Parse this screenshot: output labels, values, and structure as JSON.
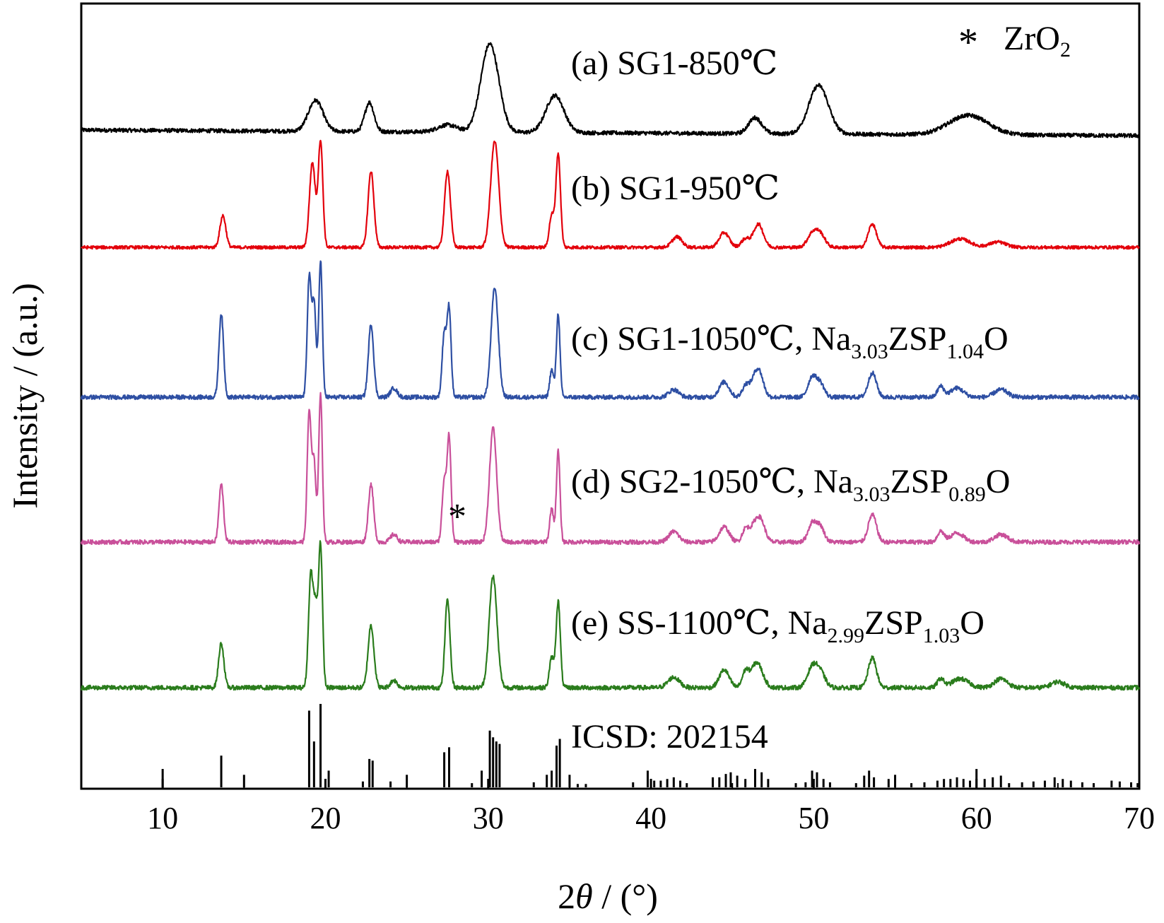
{
  "chart_data": {
    "type": "line",
    "xlabel_prefix": "2",
    "xlabel_symbol": "θ",
    "xlabel_suffix": " / (°)",
    "ylabel": "Intensity / (a.u.)",
    "xlim": [
      5,
      70
    ],
    "x_ticks": [
      10,
      20,
      30,
      40,
      50,
      60,
      70
    ],
    "y_tick_labels_shown": false,
    "grid": false,
    "legend_note": {
      "marker": "*",
      "text": "ZrO",
      "sub": "2"
    },
    "series": [
      {
        "id": "a",
        "label_main": "(a) SG1-850℃",
        "label_rest": [],
        "color": "#000000",
        "noise": 0.045,
        "peaks": [
          [
            19.4,
            0.35,
            0.45
          ],
          [
            22.7,
            0.33,
            0.28
          ],
          [
            27.5,
            0.08,
            0.6
          ],
          [
            30.1,
            1.0,
            0.55
          ],
          [
            34.1,
            0.42,
            0.55
          ],
          [
            46.4,
            0.18,
            0.4
          ],
          [
            50.3,
            0.55,
            0.6
          ],
          [
            59.5,
            0.22,
            1.2
          ]
        ]
      },
      {
        "id": "b",
        "label_main": "(b) SG1-950℃",
        "label_rest": [],
        "color": "#e3000b",
        "noise": 0.03,
        "peaks": [
          [
            13.7,
            0.3,
            0.18
          ],
          [
            19.2,
            0.8,
            0.18
          ],
          [
            19.7,
            1.0,
            0.14
          ],
          [
            22.8,
            0.72,
            0.18
          ],
          [
            27.5,
            0.72,
            0.18
          ],
          [
            30.4,
            1.0,
            0.25
          ],
          [
            33.9,
            0.3,
            0.15
          ],
          [
            34.3,
            0.88,
            0.14
          ],
          [
            41.6,
            0.1,
            0.3
          ],
          [
            44.5,
            0.14,
            0.3
          ],
          [
            45.8,
            0.08,
            0.25
          ],
          [
            46.6,
            0.22,
            0.3
          ],
          [
            49.9,
            0.12,
            0.3
          ],
          [
            50.4,
            0.12,
            0.3
          ],
          [
            53.6,
            0.22,
            0.25
          ],
          [
            59.0,
            0.08,
            0.6
          ],
          [
            61.3,
            0.05,
            0.5
          ]
        ]
      },
      {
        "id": "c",
        "label_main": "(c) SG1-1050℃, Na",
        "label_rest": [
          [
            "3.03",
            "sub"
          ],
          [
            "ZSP",
            "main"
          ],
          [
            "1.04",
            "sub"
          ],
          [
            "O",
            "main"
          ]
        ],
        "color": "#2e4fa3",
        "noise": 0.028,
        "peaks": [
          [
            13.6,
            0.55,
            0.14
          ],
          [
            19.0,
            0.78,
            0.12
          ],
          [
            19.3,
            0.62,
            0.12
          ],
          [
            19.7,
            0.9,
            0.11
          ],
          [
            22.8,
            0.48,
            0.16
          ],
          [
            24.2,
            0.06,
            0.2
          ],
          [
            27.3,
            0.42,
            0.13
          ],
          [
            27.6,
            0.58,
            0.12
          ],
          [
            30.4,
            0.72,
            0.22
          ],
          [
            33.9,
            0.18,
            0.12
          ],
          [
            34.3,
            0.55,
            0.11
          ],
          [
            41.4,
            0.05,
            0.3
          ],
          [
            44.5,
            0.1,
            0.3
          ],
          [
            45.8,
            0.07,
            0.2
          ],
          [
            46.4,
            0.12,
            0.3
          ],
          [
            46.7,
            0.1,
            0.25
          ],
          [
            49.9,
            0.13,
            0.25
          ],
          [
            50.4,
            0.09,
            0.25
          ],
          [
            53.6,
            0.16,
            0.25
          ],
          [
            57.8,
            0.07,
            0.2
          ],
          [
            58.8,
            0.06,
            0.4
          ],
          [
            61.5,
            0.05,
            0.4
          ]
        ]
      },
      {
        "id": "d",
        "label_main": "(d) SG2-1050℃, Na",
        "label_rest": [
          [
            "3.03",
            "sub"
          ],
          [
            "ZSP",
            "main"
          ],
          [
            "0.89",
            "sub"
          ],
          [
            "O",
            "main"
          ]
        ],
        "color": "#c9509a",
        "noise": 0.028,
        "peaks": [
          [
            13.6,
            0.38,
            0.14
          ],
          [
            19.0,
            0.85,
            0.12
          ],
          [
            19.3,
            0.52,
            0.12
          ],
          [
            19.7,
            0.98,
            0.11
          ],
          [
            22.8,
            0.38,
            0.16
          ],
          [
            24.2,
            0.05,
            0.2
          ],
          [
            27.3,
            0.4,
            0.13
          ],
          [
            27.6,
            0.68,
            0.12
          ],
          [
            30.3,
            0.75,
            0.22
          ],
          [
            33.9,
            0.22,
            0.12
          ],
          [
            34.3,
            0.6,
            0.11
          ],
          [
            41.4,
            0.07,
            0.3
          ],
          [
            44.5,
            0.1,
            0.3
          ],
          [
            45.8,
            0.08,
            0.2
          ],
          [
            46.4,
            0.12,
            0.3
          ],
          [
            46.8,
            0.1,
            0.25
          ],
          [
            49.9,
            0.12,
            0.25
          ],
          [
            50.4,
            0.1,
            0.25
          ],
          [
            53.6,
            0.18,
            0.25
          ],
          [
            57.8,
            0.07,
            0.2
          ],
          [
            58.8,
            0.06,
            0.4
          ],
          [
            61.5,
            0.05,
            0.4
          ]
        ]
      },
      {
        "id": "e",
        "label_main": "(e) SS-1100℃, Na",
        "label_rest": [
          [
            "2.99",
            "sub"
          ],
          [
            "ZSP",
            "main"
          ],
          [
            "1.03",
            "sub"
          ],
          [
            "O",
            "main"
          ]
        ],
        "color": "#2a7c1c",
        "noise": 0.03,
        "peaks": [
          [
            13.6,
            0.3,
            0.16
          ],
          [
            19.1,
            0.75,
            0.14
          ],
          [
            19.4,
            0.5,
            0.13
          ],
          [
            19.7,
            0.95,
            0.12
          ],
          [
            22.8,
            0.42,
            0.18
          ],
          [
            24.2,
            0.05,
            0.2
          ],
          [
            27.5,
            0.6,
            0.15
          ],
          [
            30.3,
            0.75,
            0.24
          ],
          [
            33.9,
            0.2,
            0.14
          ],
          [
            34.3,
            0.58,
            0.13
          ],
          [
            41.4,
            0.07,
            0.35
          ],
          [
            44.5,
            0.12,
            0.3
          ],
          [
            45.8,
            0.1,
            0.2
          ],
          [
            46.5,
            0.17,
            0.35
          ],
          [
            49.9,
            0.13,
            0.3
          ],
          [
            50.4,
            0.1,
            0.3
          ],
          [
            53.6,
            0.2,
            0.25
          ],
          [
            57.8,
            0.06,
            0.2
          ],
          [
            59.0,
            0.06,
            0.5
          ],
          [
            61.5,
            0.06,
            0.4
          ],
          [
            65.0,
            0.04,
            0.4
          ]
        ]
      }
    ],
    "zro2_marker": {
      "x": 28.1,
      "series": "d",
      "text": "*"
    },
    "reference": {
      "label": "ICSD: 202154",
      "sticks": [
        [
          10.0,
          0.22
        ],
        [
          13.6,
          0.38
        ],
        [
          15.0,
          0.15
        ],
        [
          19.0,
          0.92
        ],
        [
          19.3,
          0.55
        ],
        [
          19.7,
          1.0
        ],
        [
          20.2,
          0.2
        ],
        [
          22.3,
          0.07
        ],
        [
          22.7,
          0.34
        ],
        [
          22.9,
          0.32
        ],
        [
          24.0,
          0.07
        ],
        [
          25.0,
          0.15
        ],
        [
          27.3,
          0.42
        ],
        [
          27.6,
          0.48
        ],
        [
          29.0,
          0.05
        ],
        [
          29.6,
          0.2
        ],
        [
          30.1,
          0.68
        ],
        [
          30.3,
          0.6
        ],
        [
          30.5,
          0.55
        ],
        [
          30.7,
          0.52
        ],
        [
          32.8,
          0.06
        ],
        [
          33.6,
          0.15
        ],
        [
          33.9,
          0.2
        ],
        [
          34.2,
          0.5
        ],
        [
          34.4,
          0.58
        ],
        [
          35.0,
          0.15
        ],
        [
          35.5,
          0.04
        ],
        [
          36.0,
          0.04
        ],
        [
          38.9,
          0.06
        ],
        [
          39.8,
          0.2
        ],
        [
          40.2,
          0.08
        ],
        [
          40.6,
          0.08
        ],
        [
          41.0,
          0.1
        ],
        [
          41.4,
          0.12
        ],
        [
          41.8,
          0.08
        ],
        [
          42.2,
          0.05
        ],
        [
          43.8,
          0.12
        ],
        [
          44.2,
          0.12
        ],
        [
          44.6,
          0.16
        ],
        [
          44.9,
          0.18
        ],
        [
          45.3,
          0.14
        ],
        [
          45.8,
          0.1
        ],
        [
          46.4,
          0.22
        ],
        [
          46.8,
          0.18
        ],
        [
          47.2,
          0.1
        ],
        [
          48.9,
          0.05
        ],
        [
          49.5,
          0.06
        ],
        [
          49.9,
          0.2
        ],
        [
          50.2,
          0.18
        ],
        [
          50.6,
          0.1
        ],
        [
          51.0,
          0.06
        ],
        [
          52.6,
          0.05
        ],
        [
          53.1,
          0.14
        ],
        [
          53.4,
          0.2
        ],
        [
          53.7,
          0.12
        ],
        [
          54.6,
          0.1
        ],
        [
          55.0,
          0.15
        ],
        [
          56.0,
          0.05
        ],
        [
          56.8,
          0.06
        ],
        [
          57.6,
          0.08
        ],
        [
          58.0,
          0.1
        ],
        [
          58.4,
          0.1
        ],
        [
          58.8,
          0.12
        ],
        [
          59.2,
          0.1
        ],
        [
          59.6,
          0.08
        ],
        [
          60.0,
          0.22
        ],
        [
          60.5,
          0.1
        ],
        [
          61.0,
          0.12
        ],
        [
          61.5,
          0.14
        ],
        [
          62.0,
          0.05
        ],
        [
          62.8,
          0.06
        ],
        [
          63.5,
          0.07
        ],
        [
          64.2,
          0.08
        ],
        [
          64.8,
          0.12
        ],
        [
          65.3,
          0.1
        ],
        [
          65.8,
          0.08
        ],
        [
          66.5,
          0.06
        ],
        [
          67.2,
          0.05
        ],
        [
          68.3,
          0.08
        ],
        [
          68.8,
          0.07
        ],
        [
          69.5,
          0.06
        ],
        [
          69.9,
          0.05
        ]
      ]
    }
  }
}
